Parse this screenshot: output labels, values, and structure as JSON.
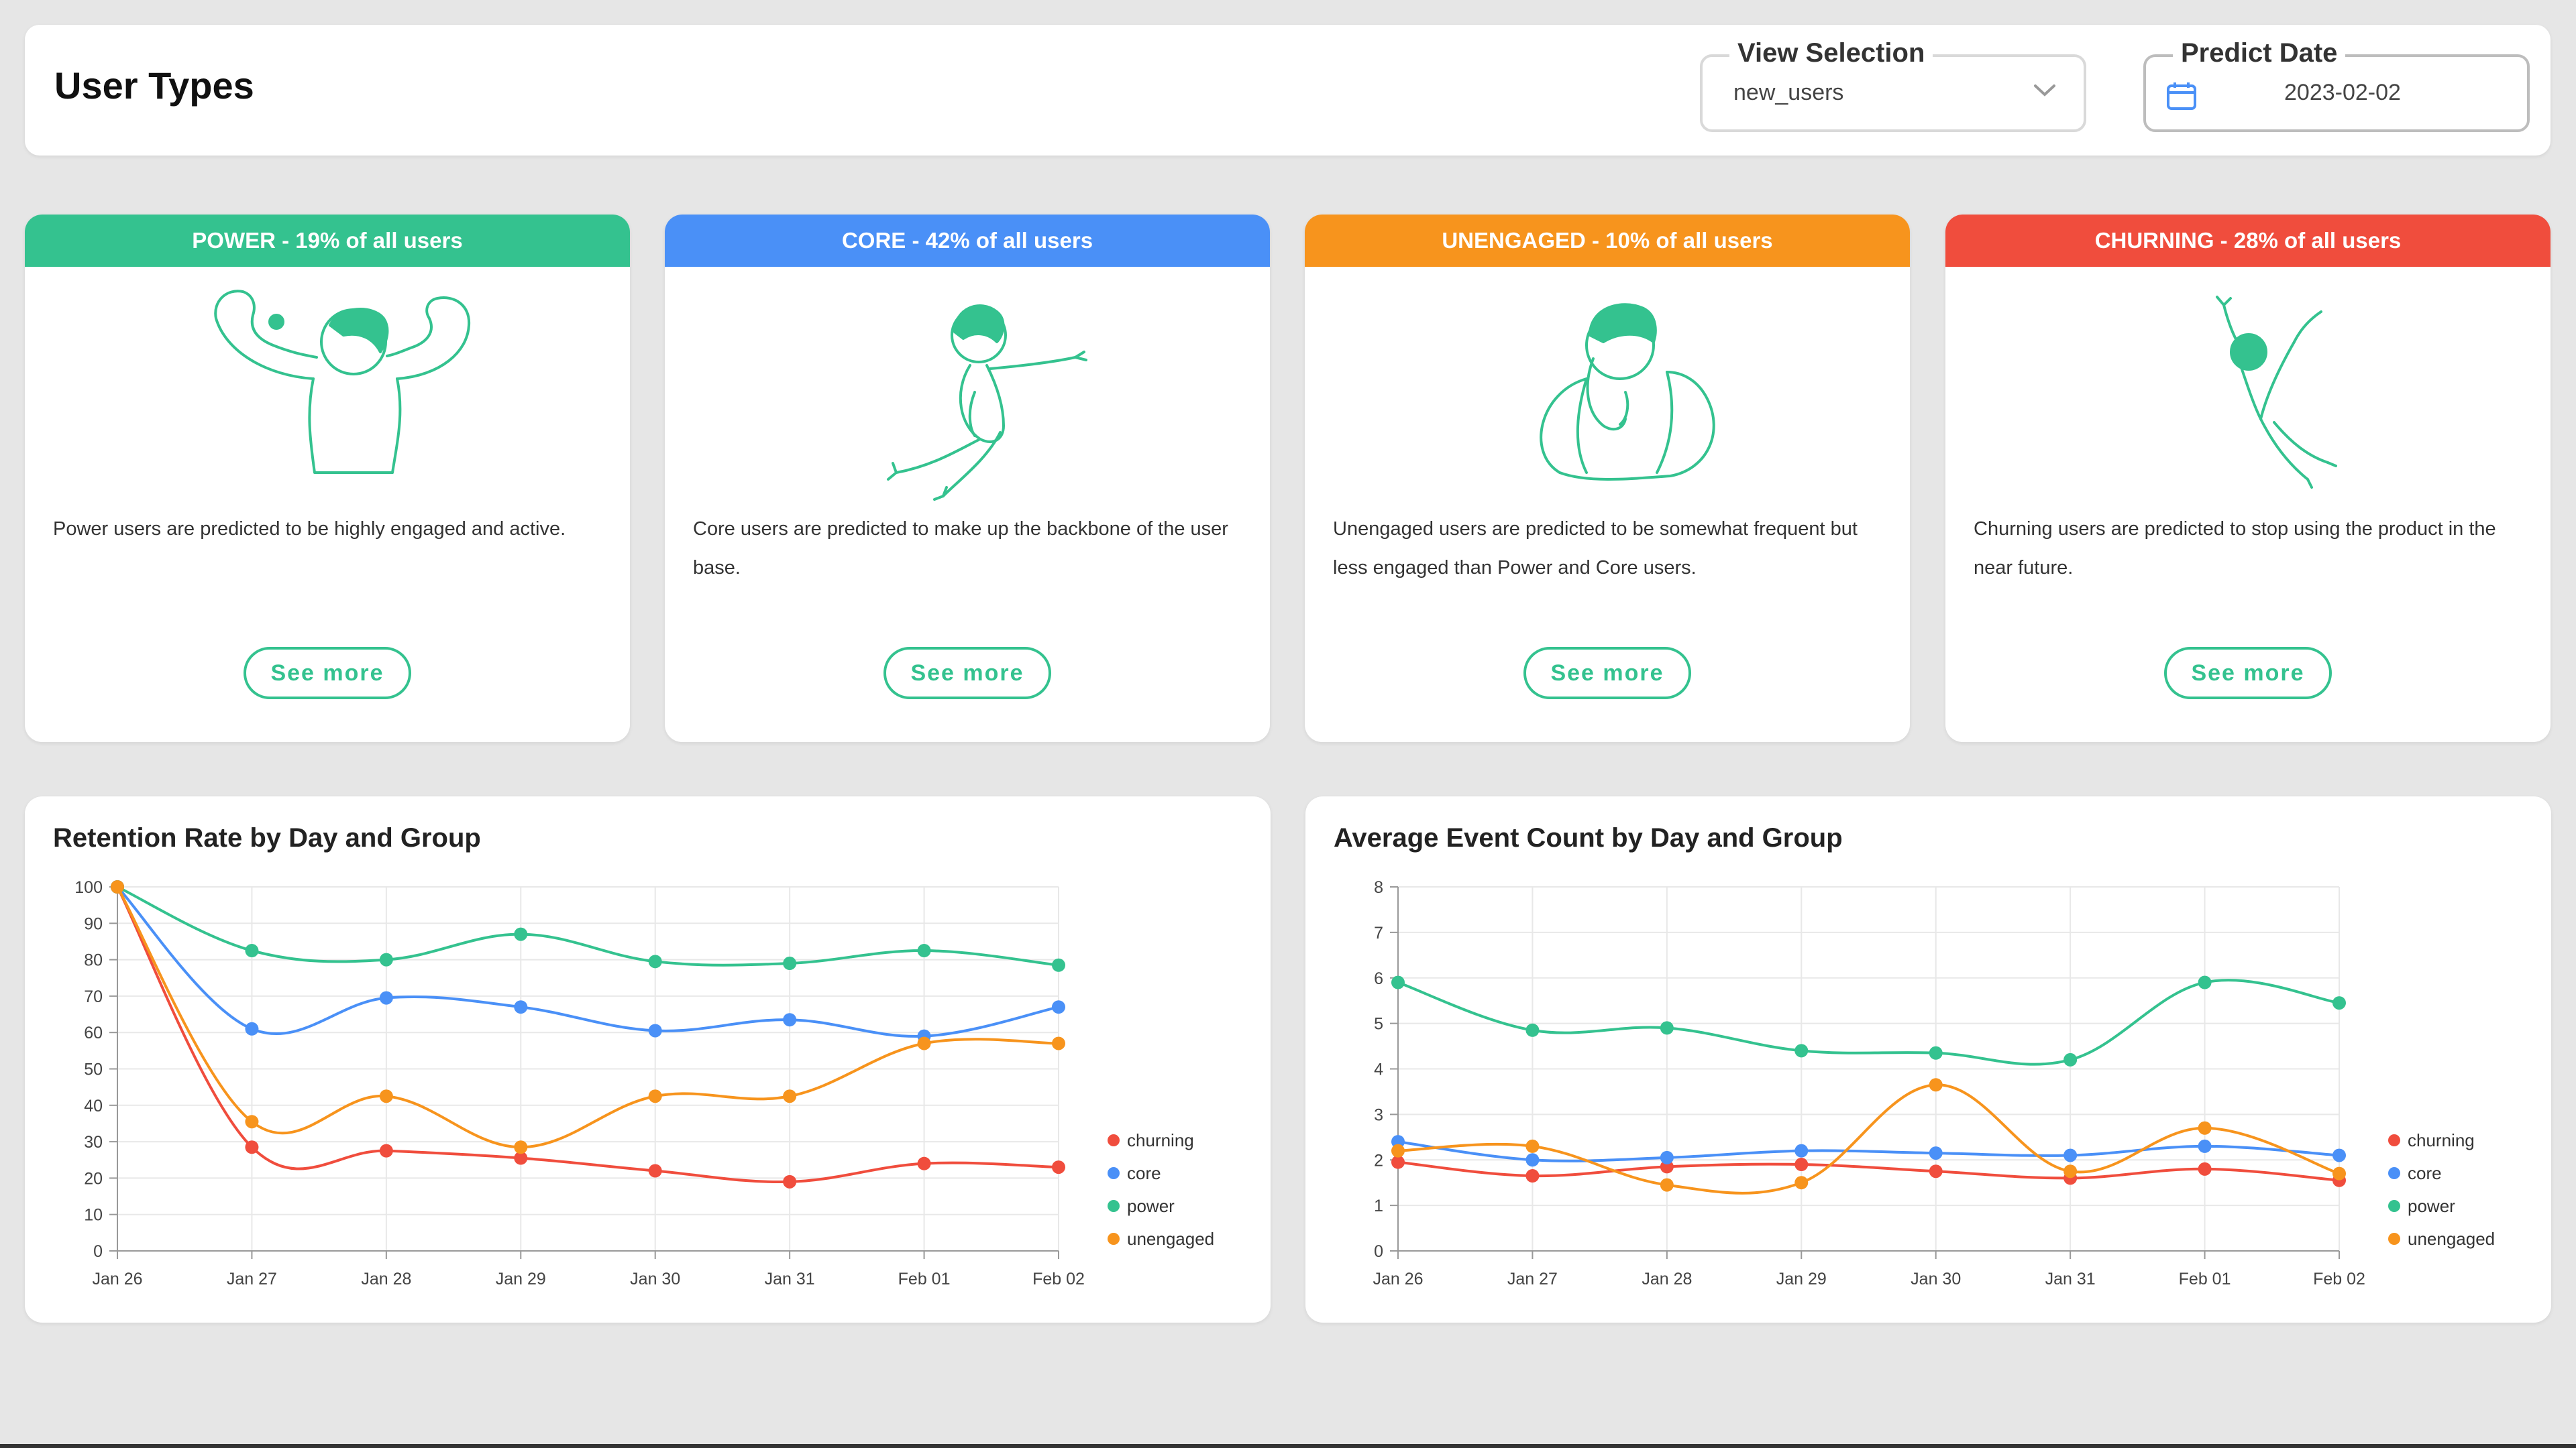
{
  "header": {
    "title": "User Types",
    "view_selection": {
      "legend": "View Selection",
      "value": "new_users"
    },
    "predict_date": {
      "legend": "Predict Date",
      "value": "2023-02-02"
    }
  },
  "colors": {
    "power": "#34c28f",
    "core": "#4a90f7",
    "unengaged": "#f7941d",
    "churning": "#f04d3d",
    "illustration": "#34c28f"
  },
  "cards": [
    {
      "key": "power",
      "title": "POWER - 19% of all users",
      "description": "Power users are predicted to be highly engaged and active.",
      "button": "See more",
      "icon": "flexing-person-icon"
    },
    {
      "key": "core",
      "title": "CORE - 42% of all users",
      "description": "Core users are predicted to make up the backbone of the user base.",
      "button": "See more",
      "icon": "jumping-person-icon"
    },
    {
      "key": "unengaged",
      "title": "UNENGAGED - 10% of all users",
      "description": "Unengaged users are predicted to be somewhat frequent but less engaged than Power and Core users.",
      "button": "See more",
      "icon": "thinking-person-icon"
    },
    {
      "key": "churning",
      "title": "CHURNING - 28% of all users",
      "description": "Churning users are predicted to stop using the product in the near future.",
      "button": "See more",
      "icon": "falling-person-icon"
    }
  ],
  "chart_data": [
    {
      "type": "line",
      "title": "Retention Rate by Day and Group",
      "x": [
        "Jan 26",
        "Jan 27",
        "Jan 28",
        "Jan 29",
        "Jan 30",
        "Jan 31",
        "Feb 01",
        "Feb 02"
      ],
      "ylim": [
        0,
        100
      ],
      "yticks": [
        0,
        10,
        20,
        30,
        40,
        50,
        60,
        70,
        80,
        90,
        100
      ],
      "grid": true,
      "legend": "right",
      "series": [
        {
          "name": "churning",
          "color": "#f04d3d",
          "values": [
            100,
            28.5,
            27.5,
            25.5,
            22,
            19,
            24,
            23
          ]
        },
        {
          "name": "core",
          "color": "#4a90f7",
          "values": [
            100,
            61,
            69.5,
            67,
            60.5,
            63.5,
            59,
            67
          ]
        },
        {
          "name": "power",
          "color": "#34c28f",
          "values": [
            100,
            82.5,
            80,
            87,
            79.5,
            79,
            82.5,
            78.5
          ]
        },
        {
          "name": "unengaged",
          "color": "#f7941d",
          "values": [
            100,
            35.5,
            42.5,
            28.5,
            42.5,
            42.5,
            57,
            57
          ]
        }
      ]
    },
    {
      "type": "line",
      "title": "Average Event Count by Day and Group",
      "x": [
        "Jan 26",
        "Jan 27",
        "Jan 28",
        "Jan 29",
        "Jan 30",
        "Jan 31",
        "Feb 01",
        "Feb 02"
      ],
      "ylim": [
        0,
        8
      ],
      "yticks": [
        0,
        1,
        2,
        3,
        4,
        5,
        6,
        7,
        8
      ],
      "grid": true,
      "legend": "right",
      "series": [
        {
          "name": "churning",
          "color": "#f04d3d",
          "values": [
            1.95,
            1.65,
            1.85,
            1.9,
            1.75,
            1.6,
            1.8,
            1.55
          ]
        },
        {
          "name": "core",
          "color": "#4a90f7",
          "values": [
            2.4,
            2.0,
            2.05,
            2.2,
            2.15,
            2.1,
            2.3,
            2.1
          ]
        },
        {
          "name": "power",
          "color": "#34c28f",
          "values": [
            5.9,
            4.85,
            4.9,
            4.4,
            4.35,
            4.2,
            5.9,
            5.45
          ]
        },
        {
          "name": "unengaged",
          "color": "#f7941d",
          "values": [
            2.2,
            2.3,
            1.45,
            1.5,
            3.65,
            1.75,
            2.7,
            1.7
          ]
        }
      ]
    }
  ]
}
